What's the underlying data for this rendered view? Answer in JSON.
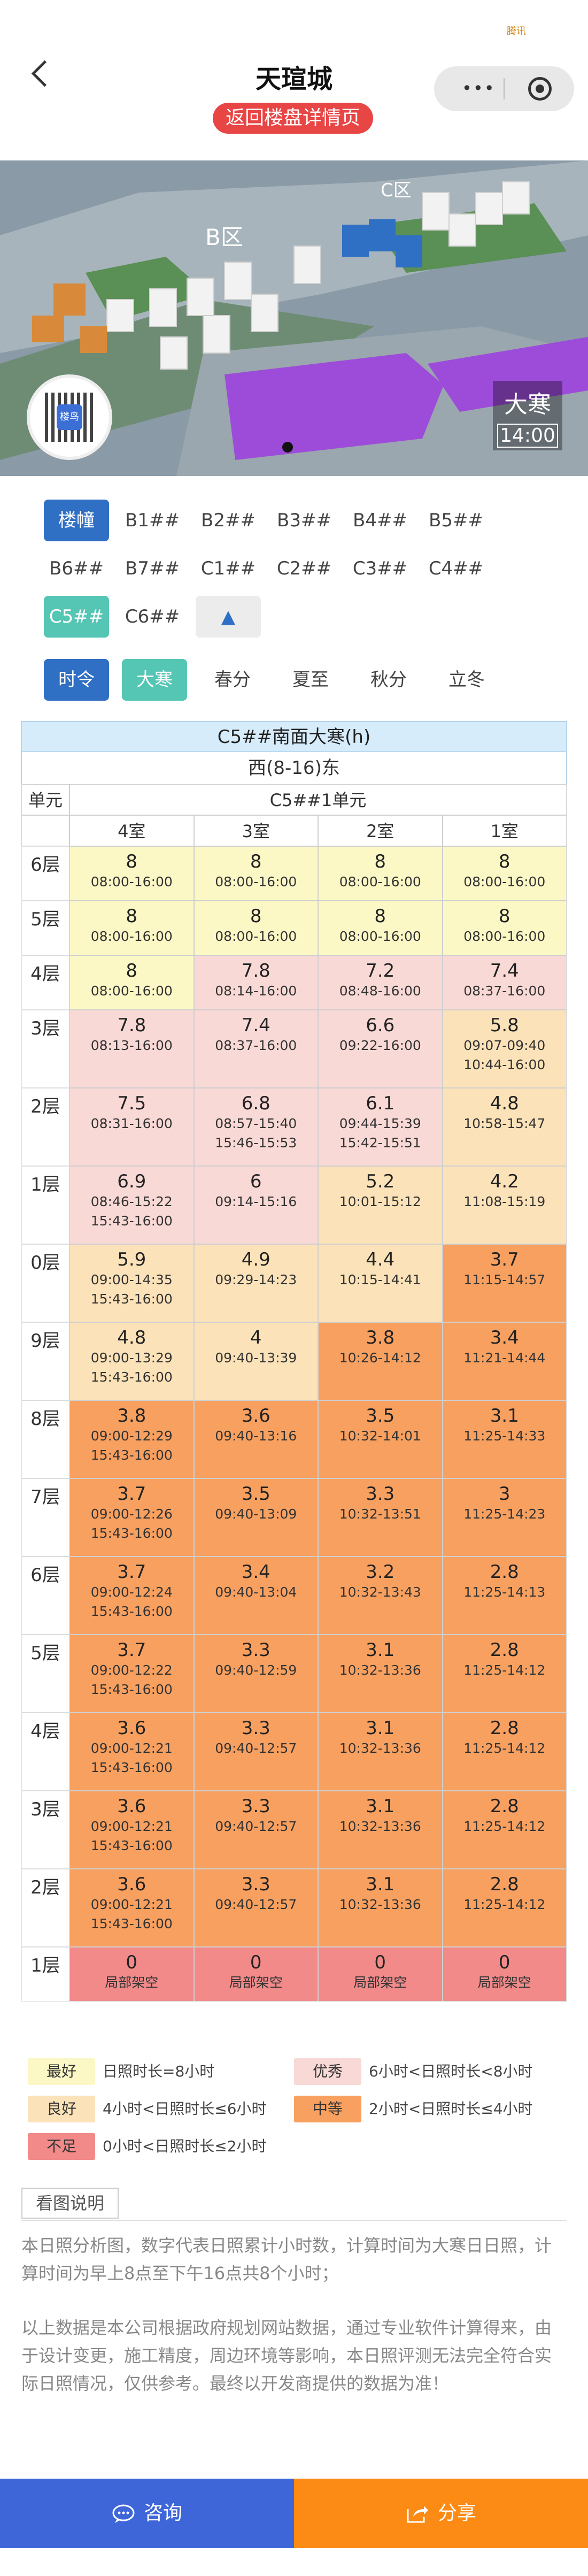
{
  "header": {
    "title": "天瑄城",
    "back_detail_label": "返回楼盘详情页",
    "corner_mark": "腾讯"
  },
  "map": {
    "zone_b": "B区",
    "zone_c": "C区",
    "season": "大寒",
    "time": "14:00",
    "qr_logo": "楼鸟"
  },
  "buildings": {
    "row1": [
      {
        "label": "楼幢",
        "active": true
      },
      {
        "label": "B1##"
      },
      {
        "label": "B2##"
      },
      {
        "label": "B3##"
      },
      {
        "label": "B4##"
      },
      {
        "label": "B5##"
      }
    ],
    "row2": [
      {
        "label": "B6##"
      },
      {
        "label": "B7##"
      },
      {
        "label": "C1##"
      },
      {
        "label": "C2##"
      },
      {
        "label": "C3##"
      },
      {
        "label": "C4##"
      }
    ],
    "row3": [
      {
        "label": "C5##",
        "selected": true
      },
      {
        "label": "C6##"
      },
      {
        "label": "▲",
        "arrow": true
      }
    ]
  },
  "seasons": {
    "row": [
      {
        "label": "时令",
        "active": true
      },
      {
        "label": "大寒",
        "selected": true
      },
      {
        "label": "春分"
      },
      {
        "label": "夏至"
      },
      {
        "label": "秋分"
      },
      {
        "label": "立冬"
      }
    ]
  },
  "table": {
    "title": "C5##南面大寒(h)",
    "orientation": "西(8-16)东",
    "unit_header_label": "单元",
    "unit_name": "C5##1单元",
    "rooms": [
      "4室",
      "3室",
      "2室",
      "1室"
    ],
    "colors": {
      "best": "#fbf8c6",
      "excellent": "#f9d9d6",
      "good": "#fbe2b8",
      "medium": "#f8a05f",
      "poor": "#f28a8a"
    },
    "rows": [
      {
        "floor": "6层",
        "cells": [
          {
            "v": "8",
            "t": "08:00-16:00",
            "c": "best"
          },
          {
            "v": "8",
            "t": "08:00-16:00",
            "c": "best"
          },
          {
            "v": "8",
            "t": "08:00-16:00",
            "c": "best"
          },
          {
            "v": "8",
            "t": "08:00-16:00",
            "c": "best"
          }
        ]
      },
      {
        "floor": "5层",
        "cells": [
          {
            "v": "8",
            "t": "08:00-16:00",
            "c": "best"
          },
          {
            "v": "8",
            "t": "08:00-16:00",
            "c": "best"
          },
          {
            "v": "8",
            "t": "08:00-16:00",
            "c": "best"
          },
          {
            "v": "8",
            "t": "08:00-16:00",
            "c": "best"
          }
        ]
      },
      {
        "floor": "4层",
        "cells": [
          {
            "v": "8",
            "t": "08:00-16:00",
            "c": "best"
          },
          {
            "v": "7.8",
            "t": "08:14-16:00",
            "c": "excellent"
          },
          {
            "v": "7.2",
            "t": "08:48-16:00",
            "c": "excellent"
          },
          {
            "v": "7.4",
            "t": "08:37-16:00",
            "c": "excellent"
          }
        ]
      },
      {
        "floor": "3层",
        "cells": [
          {
            "v": "7.8",
            "t": "08:13-16:00",
            "c": "excellent"
          },
          {
            "v": "7.4",
            "t": "08:37-16:00",
            "c": "excellent"
          },
          {
            "v": "6.6",
            "t": "09:22-16:00",
            "c": "excellent"
          },
          {
            "v": "5.8",
            "t": "09:07-09:40 10:44-16:00",
            "c": "good"
          }
        ]
      },
      {
        "floor": "2层",
        "cells": [
          {
            "v": "7.5",
            "t": "08:31-16:00",
            "c": "excellent"
          },
          {
            "v": "6.8",
            "t": "08:57-15:40 15:46-15:53",
            "c": "excellent"
          },
          {
            "v": "6.1",
            "t": "09:44-15:39 15:42-15:51",
            "c": "excellent"
          },
          {
            "v": "4.8",
            "t": "10:58-15:47",
            "c": "good"
          }
        ]
      },
      {
        "floor": "1层",
        "cells": [
          {
            "v": "6.9",
            "t": "08:46-15:22 15:43-16:00",
            "c": "excellent"
          },
          {
            "v": "6",
            "t": "09:14-15:16",
            "c": "excellent"
          },
          {
            "v": "5.2",
            "t": "10:01-15:12",
            "c": "good"
          },
          {
            "v": "4.2",
            "t": "11:08-15:19",
            "c": "good"
          }
        ]
      },
      {
        "floor": "0层",
        "cells": [
          {
            "v": "5.9",
            "t": "09:00-14:35 15:43-16:00",
            "c": "good"
          },
          {
            "v": "4.9",
            "t": "09:29-14:23",
            "c": "good"
          },
          {
            "v": "4.4",
            "t": "10:15-14:41",
            "c": "good"
          },
          {
            "v": "3.7",
            "t": "11:15-14:57",
            "c": "medium"
          }
        ]
      },
      {
        "floor": "9层",
        "cells": [
          {
            "v": "4.8",
            "t": "09:00-13:29 15:43-16:00",
            "c": "good"
          },
          {
            "v": "4",
            "t": "09:40-13:39",
            "c": "good"
          },
          {
            "v": "3.8",
            "t": "10:26-14:12",
            "c": "medium"
          },
          {
            "v": "3.4",
            "t": "11:21-14:44",
            "c": "medium"
          }
        ]
      },
      {
        "floor": "8层",
        "cells": [
          {
            "v": "3.8",
            "t": "09:00-12:29 15:43-16:00",
            "c": "medium"
          },
          {
            "v": "3.6",
            "t": "09:40-13:16",
            "c": "medium"
          },
          {
            "v": "3.5",
            "t": "10:32-14:01",
            "c": "medium"
          },
          {
            "v": "3.1",
            "t": "11:25-14:33",
            "c": "medium"
          }
        ]
      },
      {
        "floor": "7层",
        "cells": [
          {
            "v": "3.7",
            "t": "09:00-12:26 15:43-16:00",
            "c": "medium"
          },
          {
            "v": "3.5",
            "t": "09:40-13:09",
            "c": "medium"
          },
          {
            "v": "3.3",
            "t": "10:32-13:51",
            "c": "medium"
          },
          {
            "v": "3",
            "t": "11:25-14:23",
            "c": "medium"
          }
        ]
      },
      {
        "floor": "6层",
        "cells": [
          {
            "v": "3.7",
            "t": "09:00-12:24 15:43-16:00",
            "c": "medium"
          },
          {
            "v": "3.4",
            "t": "09:40-13:04",
            "c": "medium"
          },
          {
            "v": "3.2",
            "t": "10:32-13:43",
            "c": "medium"
          },
          {
            "v": "2.8",
            "t": "11:25-14:13",
            "c": "medium"
          }
        ]
      },
      {
        "floor": "5层",
        "cells": [
          {
            "v": "3.7",
            "t": "09:00-12:22 15:43-16:00",
            "c": "medium"
          },
          {
            "v": "3.3",
            "t": "09:40-12:59",
            "c": "medium"
          },
          {
            "v": "3.1",
            "t": "10:32-13:36",
            "c": "medium"
          },
          {
            "v": "2.8",
            "t": "11:25-14:12",
            "c": "medium"
          }
        ]
      },
      {
        "floor": "4层",
        "cells": [
          {
            "v": "3.6",
            "t": "09:00-12:21 15:43-16:00",
            "c": "medium"
          },
          {
            "v": "3.3",
            "t": "09:40-12:57",
            "c": "medium"
          },
          {
            "v": "3.1",
            "t": "10:32-13:36",
            "c": "medium"
          },
          {
            "v": "2.8",
            "t": "11:25-14:12",
            "c": "medium"
          }
        ]
      },
      {
        "floor": "3层",
        "cells": [
          {
            "v": "3.6",
            "t": "09:00-12:21 15:43-16:00",
            "c": "medium"
          },
          {
            "v": "3.3",
            "t": "09:40-12:57",
            "c": "medium"
          },
          {
            "v": "3.1",
            "t": "10:32-13:36",
            "c": "medium"
          },
          {
            "v": "2.8",
            "t": "11:25-14:12",
            "c": "medium"
          }
        ]
      },
      {
        "floor": "2层",
        "cells": [
          {
            "v": "3.6",
            "t": "09:00-12:21 15:43-16:00",
            "c": "medium"
          },
          {
            "v": "3.3",
            "t": "09:40-12:57",
            "c": "medium"
          },
          {
            "v": "3.1",
            "t": "10:32-13:36",
            "c": "medium"
          },
          {
            "v": "2.8",
            "t": "11:25-14:12",
            "c": "medium"
          }
        ]
      },
      {
        "floor": "1层",
        "cells": [
          {
            "v": "0",
            "t": "局部架空",
            "c": "poor"
          },
          {
            "v": "0",
            "t": "局部架空",
            "c": "poor"
          },
          {
            "v": "0",
            "t": "局部架空",
            "c": "poor"
          },
          {
            "v": "0",
            "t": "局部架空",
            "c": "poor"
          }
        ]
      }
    ]
  },
  "legend": [
    {
      "label": "最好",
      "desc": "日照时长=8小时",
      "c": "best"
    },
    {
      "label": "优秀",
      "desc": "6小时<日照时长<8小时",
      "c": "excellent"
    },
    {
      "label": "良好",
      "desc": "4小时<日照时长≤6小时",
      "c": "good"
    },
    {
      "label": "中等",
      "desc": "2小时<日照时长≤4小时",
      "c": "medium"
    },
    {
      "label": "不足",
      "desc": "0小时<日照时长≤2小时",
      "c": "poor"
    }
  ],
  "explain": {
    "tag": "看图说明",
    "para1": "本日照分析图，数字代表日照累计小时数，计算时间为大寒日日照，计算时间为早上8点至下午16点共8个小时；",
    "para2": "以上数据是本公司根据政府规划网站数据，通过专业软件计算得来，由于设计变更，施工精度，周边环境等影响，本日照评测无法完全符合实际日照情况，仅供参考。最终以开发商提供的数据为准！"
  },
  "footer": {
    "consult": "咨询",
    "share": "分享"
  }
}
